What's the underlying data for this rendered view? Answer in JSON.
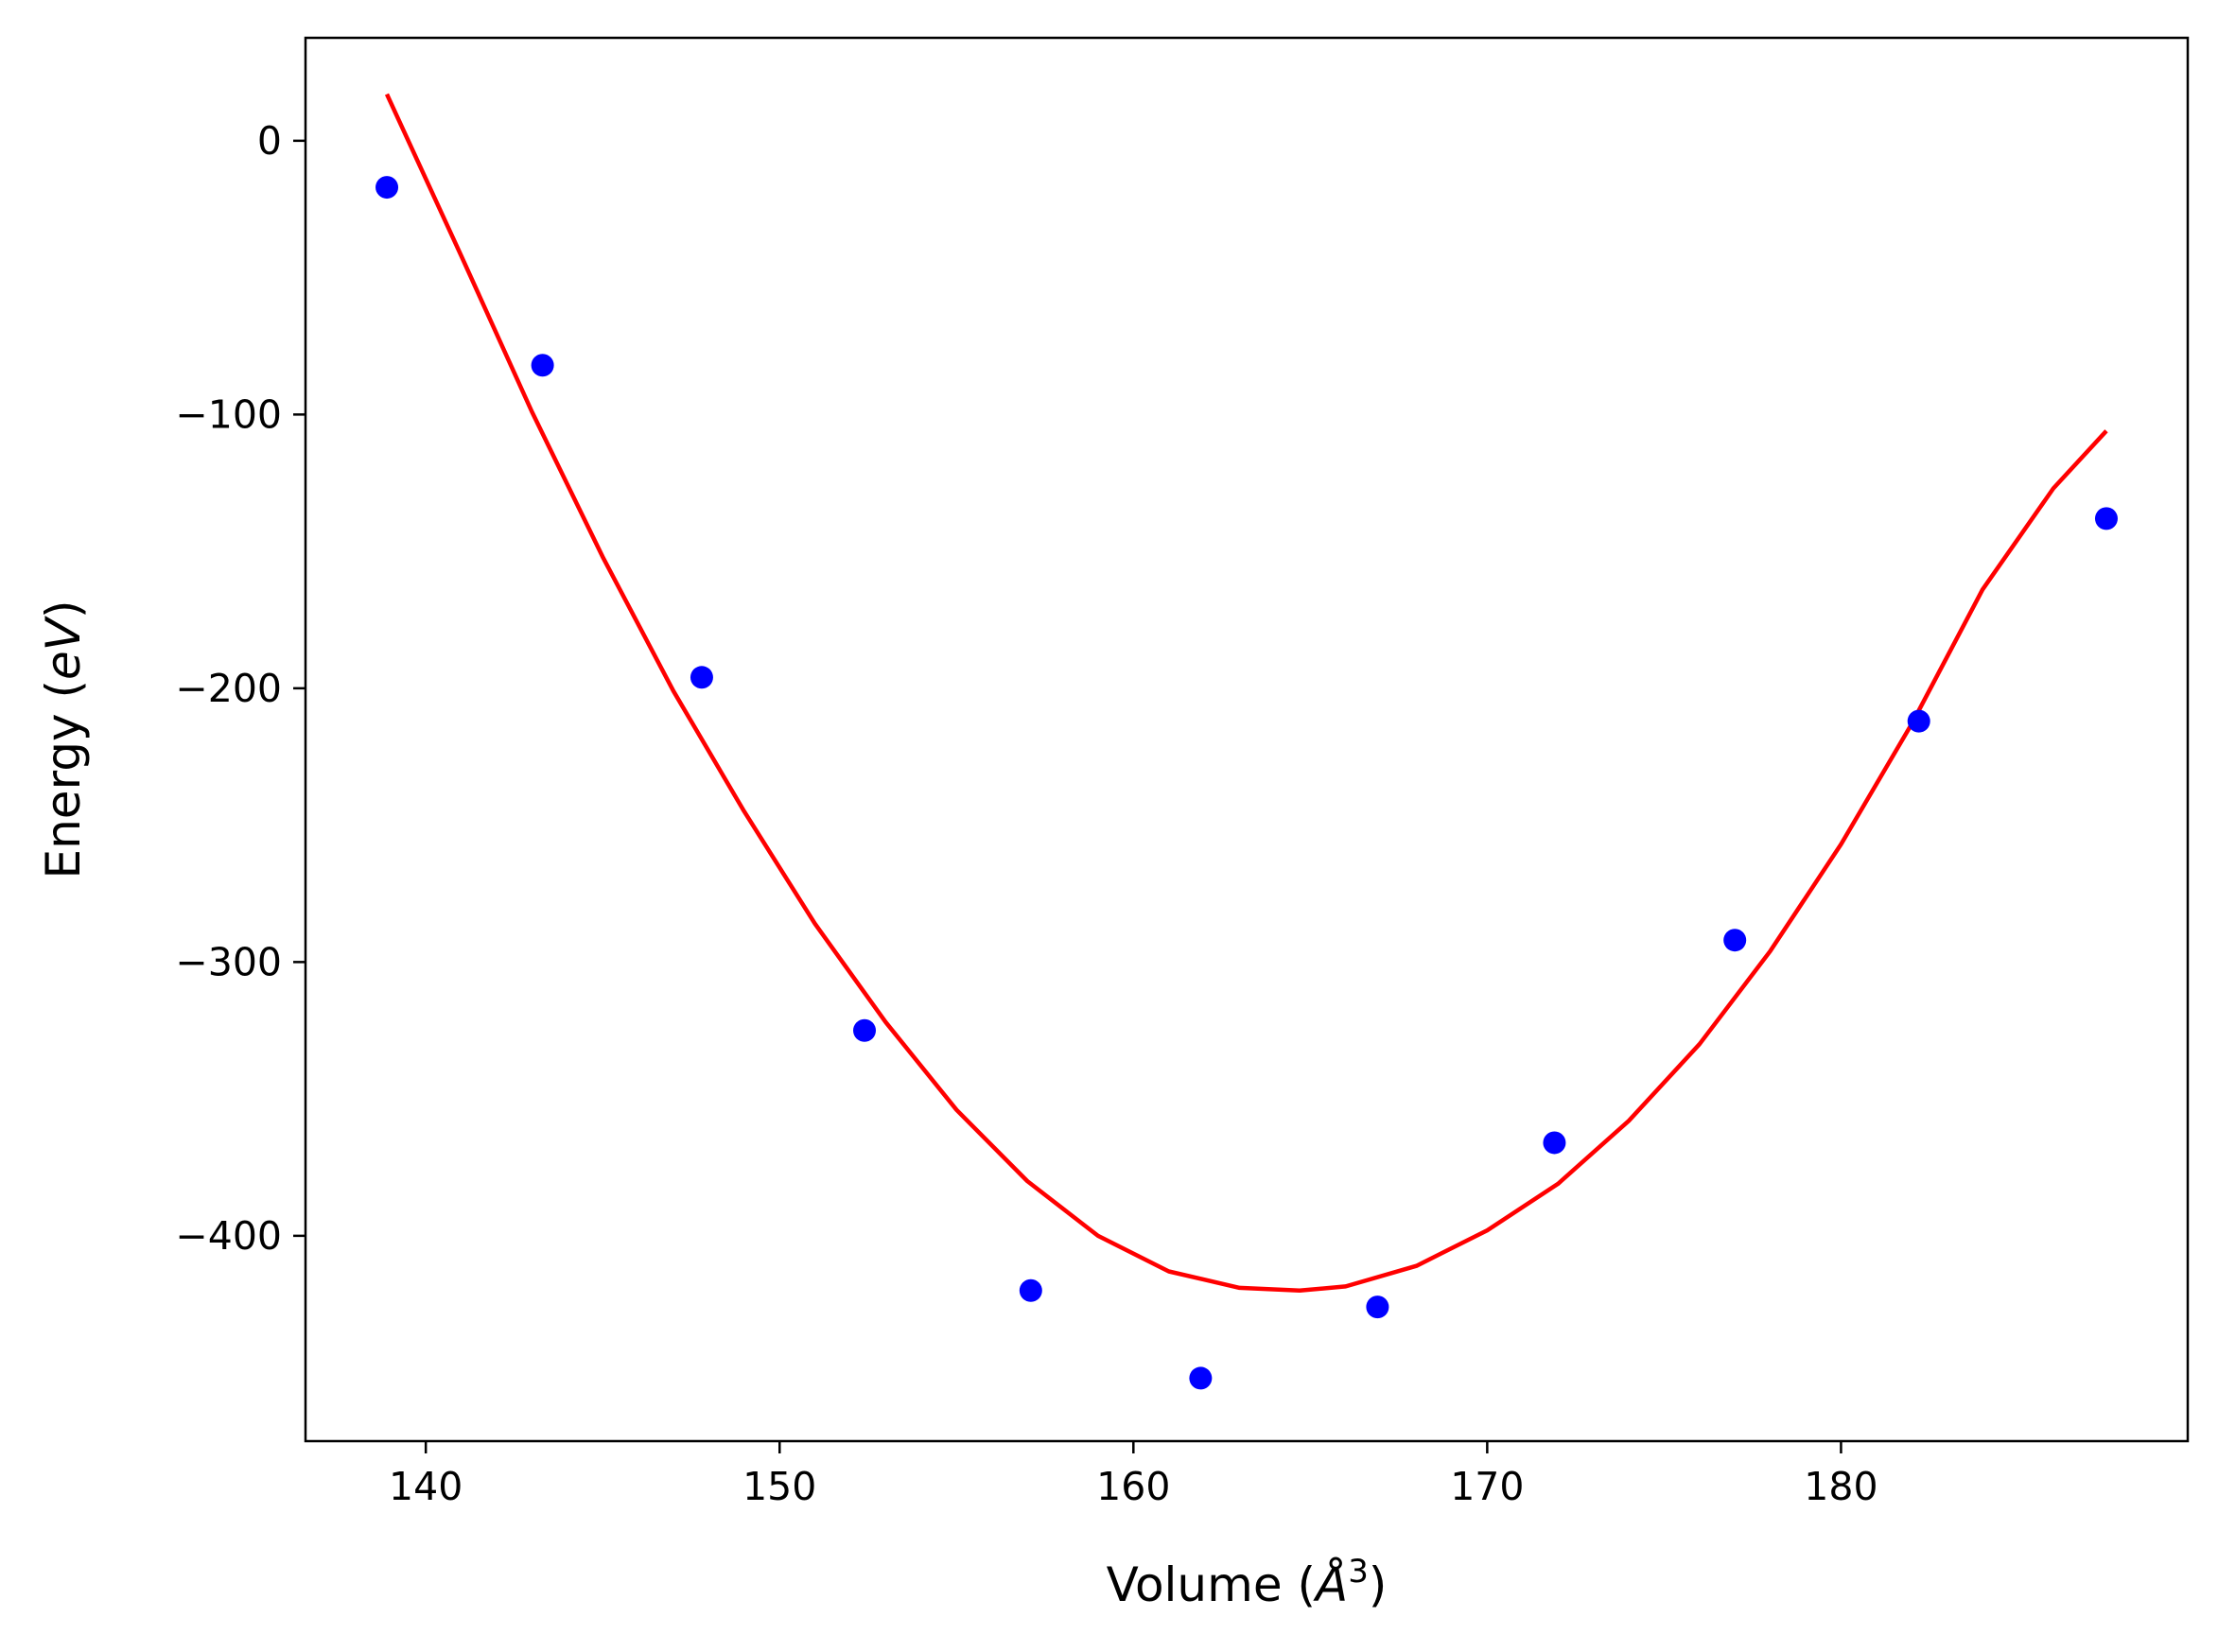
{
  "chart_data": {
    "type": "scatter",
    "title": "",
    "xlabel": {
      "text": "Volume (",
      "symbol": "Å",
      "superscript": "3",
      "suffix": ")"
    },
    "ylabel": {
      "text": "Energy (",
      "symbol": "eV",
      "suffix": ")"
    },
    "xlim": [
      136.6,
      189.8
    ],
    "ylim": [
      -475,
      37.6
    ],
    "xticks": [
      140,
      150,
      160,
      170,
      180
    ],
    "yticks": [
      0,
      -100,
      -200,
      -300,
      -400
    ],
    "xtick_labels": [
      "140",
      "150",
      "160",
      "170",
      "180"
    ],
    "ytick_labels": [
      "0",
      "−100",
      "−200",
      "−300",
      "−400"
    ],
    "grid": false,
    "series": [
      {
        "kind": "points",
        "color": "#0000ff",
        "x": [
          138.9,
          143.3,
          147.8,
          152.4,
          157.1,
          161.9,
          166.9,
          171.9,
          177.0,
          182.2,
          187.5
        ],
        "y": [
          -17.0,
          -82.0,
          -196.0,
          -325.0,
          -420.0,
          -452.0,
          -426.0,
          -366.0,
          -292.0,
          -212.0,
          -138.0
        ]
      },
      {
        "kind": "fit-curve",
        "color": "#ff0000",
        "x": [
          138.9,
          141.0,
          143.0,
          145.0,
          147.0,
          149.0,
          151.0,
          153.0,
          155.0,
          157.0,
          159.0,
          161.0,
          163.0,
          164.7,
          166.0,
          168.0,
          170.0,
          172.0,
          174.0,
          176.0,
          178.0,
          180.0,
          182.0,
          184.0,
          186.0,
          187.5
        ],
        "y": [
          17.0,
          -42.0,
          -99.0,
          -152.0,
          -201.0,
          -245.0,
          -286.0,
          -322.0,
          -354.0,
          -380.0,
          -400.0,
          -413.0,
          -419.0,
          -420.0,
          -418.5,
          -411.0,
          -398.0,
          -381.0,
          -358.0,
          -330.0,
          -296.0,
          -257.0,
          -213.0,
          -164.0,
          -127.0,
          -106.0
        ]
      }
    ]
  }
}
